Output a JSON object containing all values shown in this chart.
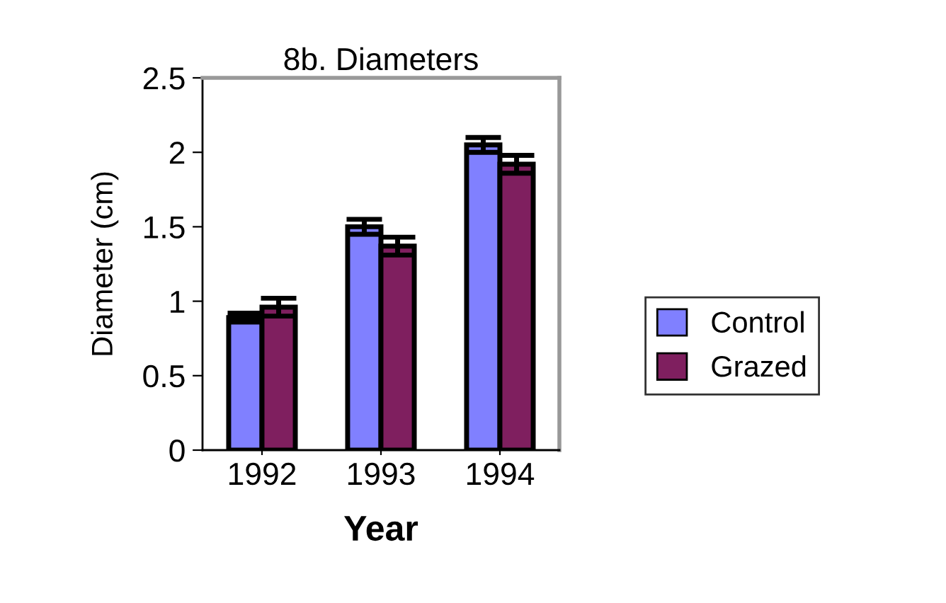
{
  "chart_data": {
    "type": "bar",
    "title": "8b. Diameters",
    "xlabel": "Year",
    "ylabel": "Diameter (cm)",
    "categories": [
      "1992",
      "1993",
      "1994"
    ],
    "series": [
      {
        "name": "Control",
        "color": "#8080ff",
        "values": [
          0.89,
          1.5,
          2.05
        ],
        "errors": [
          0.03,
          0.05,
          0.05
        ]
      },
      {
        "name": "Grazed",
        "color": "#7f1f5f",
        "values": [
          0.96,
          1.37,
          1.92
        ],
        "errors": [
          0.06,
          0.06,
          0.06
        ]
      }
    ],
    "ylim": [
      0,
      2.5
    ],
    "yticks": [
      0,
      0.5,
      1,
      1.5,
      2,
      2.5
    ],
    "grid": false,
    "legend": "right"
  }
}
